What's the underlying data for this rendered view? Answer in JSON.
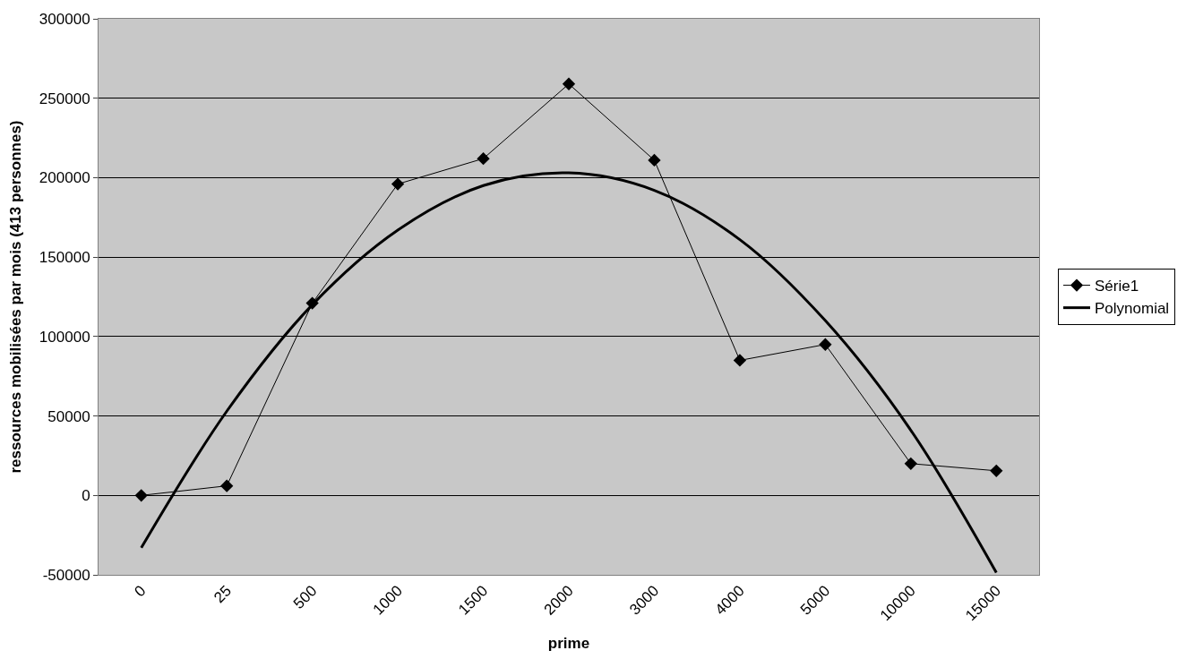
{
  "chart_data": {
    "type": "line",
    "xlabel": "prime",
    "ylabel": "ressources mobilisées par mois (413 personnes)",
    "categories": [
      "0",
      "25",
      "500",
      "1000",
      "1500",
      "2000",
      "3000",
      "4000",
      "5000",
      "10000",
      "15000"
    ],
    "series": [
      {
        "name": "Série1",
        "color": "#000000",
        "marker": "diamond",
        "values": [
          0,
          6000,
          121000,
          196000,
          212000,
          259000,
          211000,
          85000,
          95000,
          20000,
          15500
        ]
      },
      {
        "name": "Polynomial",
        "color": "#000000",
        "marker": "none",
        "values": [
          -33000,
          53000,
          120000,
          167000,
          195000,
          203000,
          192000,
          161000,
          110000,
          41000,
          -48600
        ]
      }
    ],
    "ylim": [
      -50000,
      300000
    ],
    "yticks": [
      -50000,
      0,
      50000,
      100000,
      150000,
      200000,
      250000,
      300000
    ],
    "grid": "y",
    "legend": "right"
  }
}
